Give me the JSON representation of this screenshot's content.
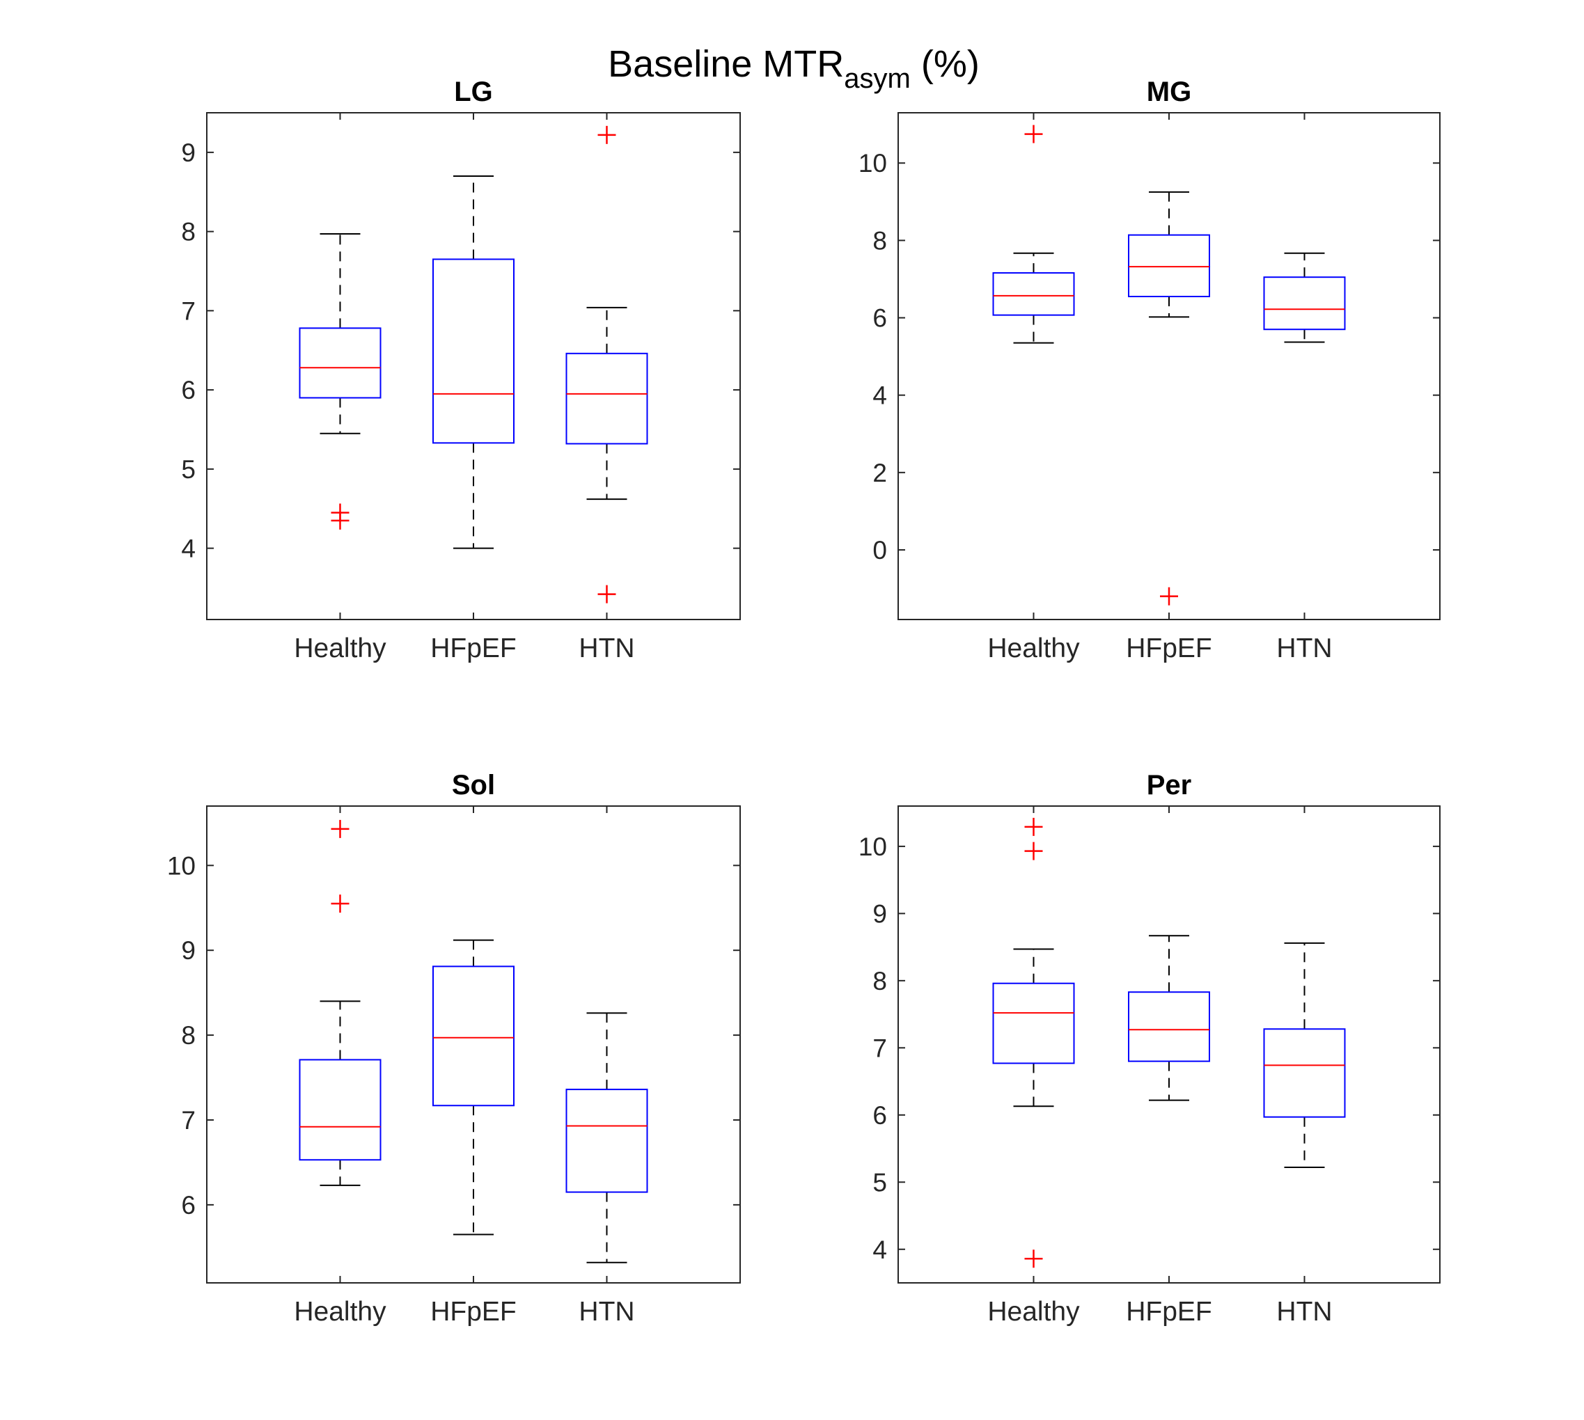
{
  "figure": {
    "title_main": "Baseline MTR",
    "title_sub": "asym",
    "title_suffix": " (%)"
  },
  "colors": {
    "box": "#0000ff",
    "median": "#ff0000",
    "whisker": "#000000",
    "outlier": "#ff0000",
    "axis": "#262626"
  },
  "chart_data": [
    {
      "type": "box",
      "title": "LG",
      "categories": [
        "Healthy",
        "HFpEF",
        "HTN"
      ],
      "ylim": [
        3.1,
        9.5
      ],
      "yticks": [
        4,
        5,
        6,
        7,
        8,
        9
      ],
      "boxes": [
        {
          "whisker_low": 5.45,
          "q1": 5.9,
          "median": 6.28,
          "q3": 6.78,
          "whisker_high": 7.97,
          "outliers": [
            4.45,
            4.35
          ]
        },
        {
          "whisker_low": 4.0,
          "q1": 5.33,
          "median": 5.95,
          "q3": 7.65,
          "whisker_high": 8.7,
          "outliers": []
        },
        {
          "whisker_low": 4.62,
          "q1": 5.32,
          "median": 5.95,
          "q3": 6.46,
          "whisker_high": 7.04,
          "outliers": [
            9.22,
            3.42
          ]
        }
      ]
    },
    {
      "type": "box",
      "title": "MG",
      "categories": [
        "Healthy",
        "HFpEF",
        "HTN"
      ],
      "ylim": [
        -1.8,
        11.3
      ],
      "yticks": [
        0,
        2,
        4,
        6,
        8,
        10
      ],
      "boxes": [
        {
          "whisker_low": 5.35,
          "q1": 6.07,
          "median": 6.57,
          "q3": 7.16,
          "whisker_high": 7.67,
          "outliers": [
            10.75
          ]
        },
        {
          "whisker_low": 6.02,
          "q1": 6.55,
          "median": 7.32,
          "q3": 8.14,
          "whisker_high": 9.25,
          "outliers": [
            -1.2
          ]
        },
        {
          "whisker_low": 5.37,
          "q1": 5.7,
          "median": 6.22,
          "q3": 7.05,
          "whisker_high": 7.67,
          "outliers": []
        }
      ]
    },
    {
      "type": "box",
      "title": "Sol",
      "categories": [
        "Healthy",
        "HFpEF",
        "HTN"
      ],
      "ylim": [
        5.08,
        10.7
      ],
      "yticks": [
        6,
        7,
        8,
        9,
        10
      ],
      "boxes": [
        {
          "whisker_low": 6.23,
          "q1": 6.53,
          "median": 6.92,
          "q3": 7.71,
          "whisker_high": 8.4,
          "outliers": [
            10.43,
            9.55
          ]
        },
        {
          "whisker_low": 5.65,
          "q1": 7.17,
          "median": 7.97,
          "q3": 8.81,
          "whisker_high": 9.12,
          "outliers": []
        },
        {
          "whisker_low": 5.32,
          "q1": 6.15,
          "median": 6.93,
          "q3": 7.36,
          "whisker_high": 8.26,
          "outliers": []
        }
      ]
    },
    {
      "type": "box",
      "title": "Per",
      "categories": [
        "Healthy",
        "HFpEF",
        "HTN"
      ],
      "ylim": [
        3.5,
        10.6
      ],
      "yticks": [
        4,
        5,
        6,
        7,
        8,
        9,
        10
      ],
      "boxes": [
        {
          "whisker_low": 6.13,
          "q1": 6.77,
          "median": 7.52,
          "q3": 7.96,
          "whisker_high": 8.47,
          "outliers": [
            10.29,
            9.93,
            3.86
          ]
        },
        {
          "whisker_low": 6.22,
          "q1": 6.8,
          "median": 7.27,
          "q3": 7.83,
          "whisker_high": 8.67,
          "outliers": []
        },
        {
          "whisker_low": 5.22,
          "q1": 5.97,
          "median": 6.74,
          "q3": 7.28,
          "whisker_high": 8.56,
          "outliers": []
        }
      ]
    }
  ]
}
